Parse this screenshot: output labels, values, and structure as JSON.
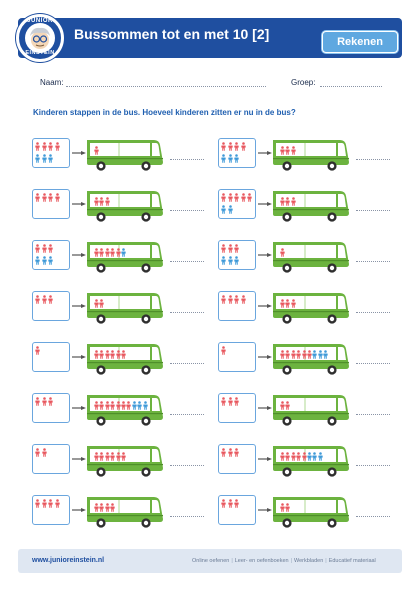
{
  "header": {
    "title": "Bussommen tot en met 10 [2]",
    "badge": "Rekenen",
    "logo_text_top": "JUNIOR",
    "logo_text_bottom": "EINSTEIN"
  },
  "fields": {
    "name_label": "Naam:",
    "group_label": "Groep:"
  },
  "instruction": "Kinderen stappen in de bus. Hoeveel kinderen zitten er nu in de bus?",
  "colors": {
    "brand_blue": "#1f4fa0",
    "bus_green": "#6cb33f",
    "kid_red": "#e8585f",
    "kid_blue": "#3f9ad8"
  },
  "exercises": [
    {
      "outside_red": 4,
      "outside_blue": 3,
      "inside_red": 1,
      "inside_blue": 0
    },
    {
      "outside_red": 4,
      "outside_blue": 0,
      "inside_red": 3,
      "inside_blue": 0
    },
    {
      "outside_red": 3,
      "outside_blue": 3,
      "inside_red": 5,
      "inside_blue": 1
    },
    {
      "outside_red": 3,
      "outside_blue": 0,
      "inside_red": 2,
      "inside_blue": 0
    },
    {
      "outside_red": 1,
      "outside_blue": 0,
      "inside_red": 6,
      "inside_blue": 0
    },
    {
      "outside_red": 3,
      "outside_blue": 0,
      "inside_red": 7,
      "inside_blue": 3
    },
    {
      "outside_red": 2,
      "outside_blue": 0,
      "inside_red": 6,
      "inside_blue": 0
    },
    {
      "outside_red": 4,
      "outside_blue": 0,
      "inside_red": 4,
      "inside_blue": 0
    },
    {
      "outside_red": 4,
      "outside_blue": 3,
      "inside_red": 3,
      "inside_blue": 0
    },
    {
      "outside_red": 5,
      "outside_blue": 2,
      "inside_red": 3,
      "inside_blue": 0
    },
    {
      "outside_red": 3,
      "outside_blue": 3,
      "inside_red": 1,
      "inside_blue": 0
    },
    {
      "outside_red": 4,
      "outside_blue": 0,
      "inside_red": 3,
      "inside_blue": 0
    },
    {
      "outside_red": 1,
      "outside_blue": 0,
      "inside_red": 6,
      "inside_blue": 3
    },
    {
      "outside_red": 3,
      "outside_blue": 0,
      "inside_red": 2,
      "inside_blue": 0
    },
    {
      "outside_red": 3,
      "outside_blue": 0,
      "inside_red": 5,
      "inside_blue": 3
    },
    {
      "outside_red": 3,
      "outside_blue": 0,
      "inside_red": 2,
      "inside_blue": 0
    }
  ],
  "footer": {
    "url": "www.junioreinstein.nl",
    "links": [
      "Online oefenen",
      "Leer- en oefenboeken",
      "Werkbladen",
      "Educatief materiaal"
    ]
  }
}
